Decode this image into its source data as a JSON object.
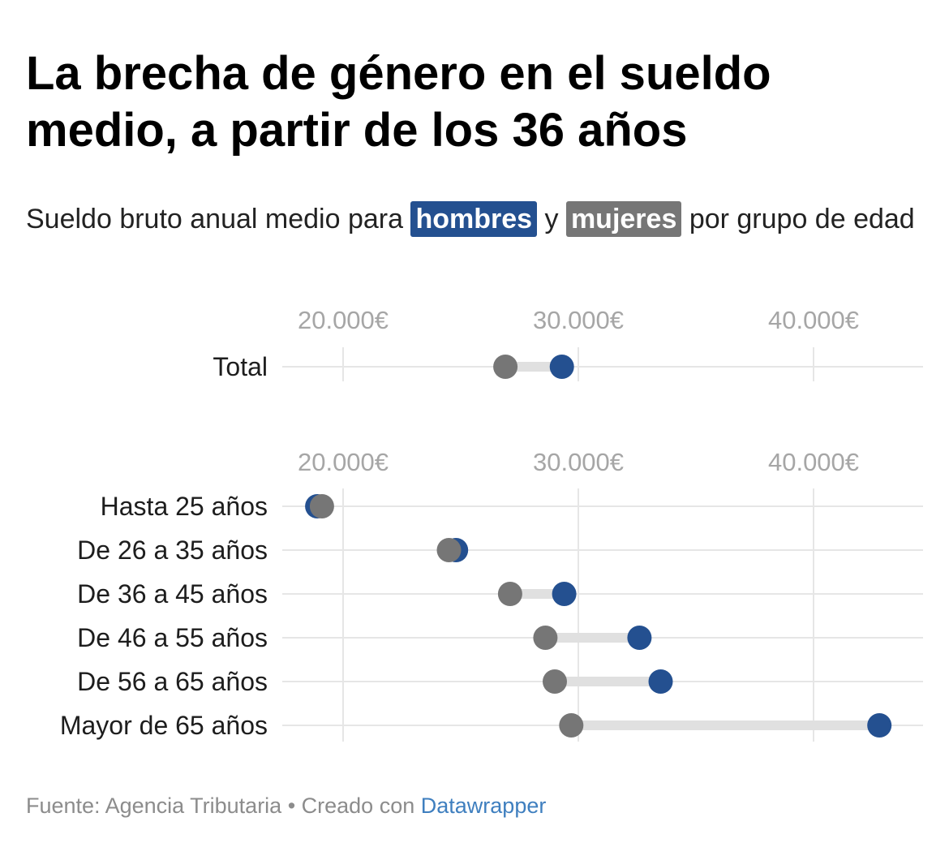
{
  "title": "La brecha de género en el sueldo medio, a partir de los 36 años",
  "subtitle": {
    "before": "Sueldo bruto anual medio para",
    "men_label": "hombres",
    "connector": "y",
    "women_label": "mujeres",
    "after": "por grupo de edad"
  },
  "colors": {
    "men": "#245090",
    "women": "#767676",
    "range_line": "#e0e0e0",
    "grid": "#e6e6e6",
    "tick_text": "#a6a6a6"
  },
  "chart_data": {
    "type": "range-plot",
    "unit": "€",
    "xlim": [
      17500,
      42800
    ],
    "ticks": [
      {
        "value": 20000,
        "label": "20.000€"
      },
      {
        "value": 30000,
        "label": "30.000€"
      },
      {
        "value": 40000,
        "label": "40.000€"
      }
    ],
    "series": [
      {
        "name": "hombres",
        "key": "men"
      },
      {
        "name": "mujeres",
        "key": "women"
      }
    ],
    "panels": [
      {
        "rows": [
          {
            "label": "Total",
            "men": 29300,
            "women": 26900
          }
        ]
      },
      {
        "rows": [
          {
            "label": "Hasta 25 años",
            "men": 18900,
            "women": 19100
          },
          {
            "label": "De 26 a 35 años",
            "men": 24800,
            "women": 24500
          },
          {
            "label": "De 36 a 45 años",
            "men": 29400,
            "women": 27100
          },
          {
            "label": "De 46 a 55 años",
            "men": 32600,
            "women": 28600
          },
          {
            "label": "De 56 a 65 años",
            "men": 33500,
            "women": 29000
          },
          {
            "label": "Mayor de 65 años",
            "men": 42800,
            "women": 29700
          }
        ]
      }
    ]
  },
  "footer": {
    "source": "Fuente: Agencia Tributaria • Creado con",
    "link": "Datawrapper"
  }
}
